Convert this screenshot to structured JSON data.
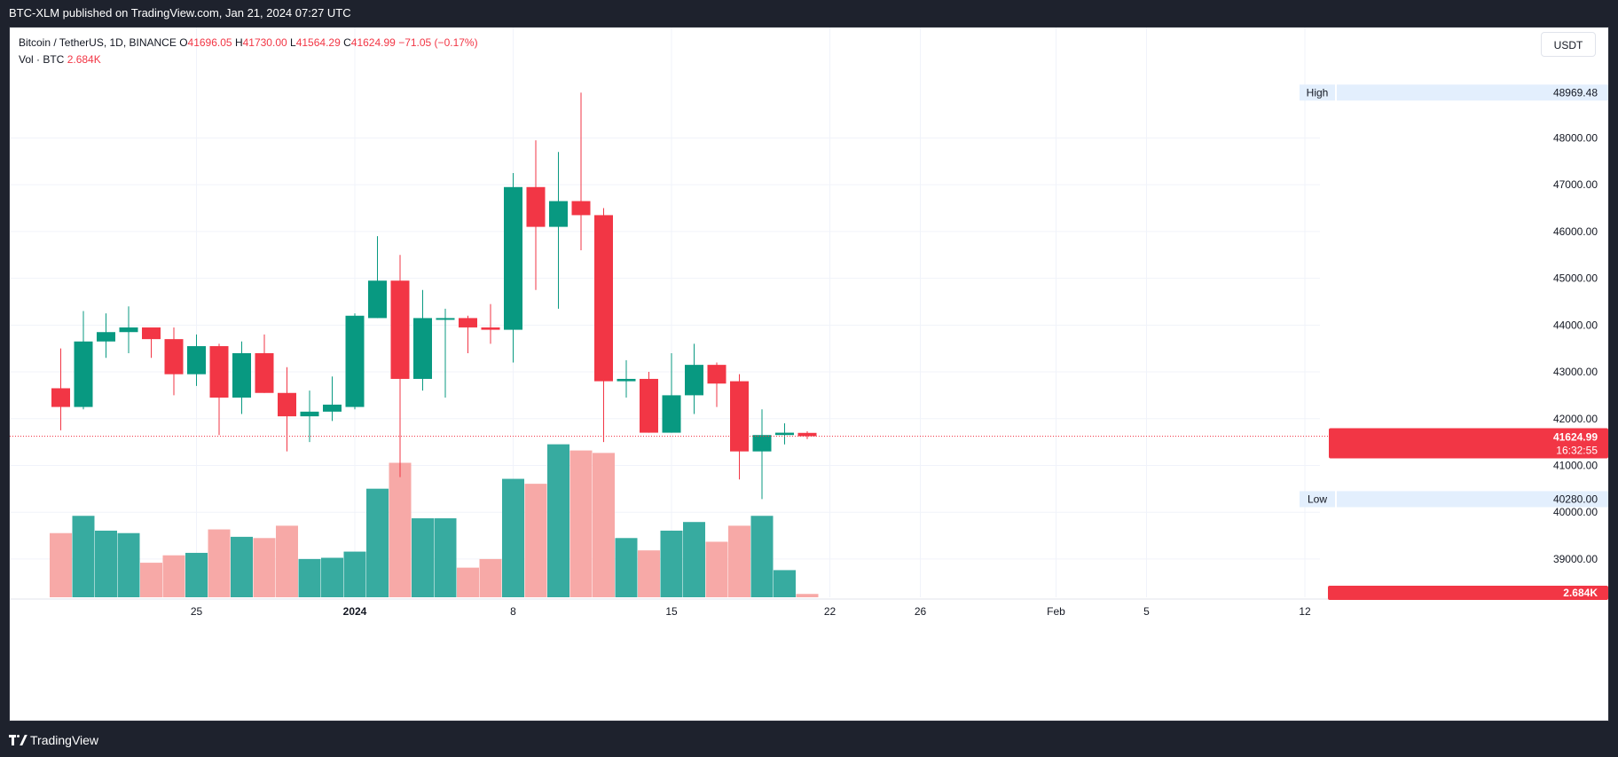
{
  "header": {
    "published": "BTC-XLM published on TradingView.com, Jan 21, 2024 07:27 UTC"
  },
  "footer": {
    "brand": "TradingView",
    "logo_icon": "tradingview-logo-icon"
  },
  "legend": {
    "symbol": "Bitcoin / TetherUS, 1D, BINANCE",
    "open_label": "O",
    "open": "41696.05",
    "high_label": "H",
    "high": "41730.00",
    "low_label": "L",
    "low": "41564.29",
    "close_label": "C",
    "close": "41624.99",
    "change": "−71.05 (−0.17%)",
    "vol_label": "Vol · BTC",
    "vol_value": "2.684K"
  },
  "currency_button": "USDT",
  "colors": {
    "up": "#089981",
    "down": "#f23645",
    "up_vol": "#37aba0",
    "down_vol": "#f7a9a7",
    "grid": "#f0f3fa",
    "text": "#131722"
  },
  "chart_data": {
    "type": "candlestick",
    "title": "Bitcoin / TetherUS, 1D, BINANCE",
    "price_range": [
      38600,
      49450
    ],
    "volume_unit": "K BTC",
    "volume_range": [
      0,
      100
    ],
    "y_ticks": [
      "48000.00",
      "47000.00",
      "46000.00",
      "45000.00",
      "44000.00",
      "43000.00",
      "42000.00",
      "41000.00",
      "40000.00",
      "39000.00"
    ],
    "x_ticks": [
      {
        "label": "25",
        "day": -7,
        "bold": false
      },
      {
        "label": "2024",
        "day": 0,
        "bold": true
      },
      {
        "label": "8",
        "day": 7,
        "bold": false
      },
      {
        "label": "15",
        "day": 14,
        "bold": false
      },
      {
        "label": "22",
        "day": 21,
        "bold": false
      },
      {
        "label": "26",
        "day": 25,
        "bold": false
      },
      {
        "label": "Feb",
        "day": 31,
        "bold": false
      },
      {
        "label": "5",
        "day": 35,
        "bold": false
      },
      {
        "label": "12",
        "day": 42,
        "bold": false
      }
    ],
    "high_label": {
      "text": "High",
      "value": "48969.48",
      "price": 48969.48
    },
    "low_label": {
      "text": "Low",
      "value": "40280.00",
      "price": 40280.0
    },
    "last_price": {
      "value": "41624.99",
      "price": 41624.99,
      "countdown": "16:32:55"
    },
    "volume_label": "2.684K",
    "candles": [
      {
        "day": -13,
        "o": 42650,
        "h": 43500,
        "l": 41750,
        "c": 42250,
        "v": 52
      },
      {
        "day": -12,
        "o": 42250,
        "h": 44300,
        "l": 42200,
        "c": 43650,
        "v": 66
      },
      {
        "day": -11,
        "o": 43650,
        "h": 44250,
        "l": 43300,
        "c": 43850,
        "v": 54
      },
      {
        "day": -10,
        "o": 43850,
        "h": 44400,
        "l": 43400,
        "c": 43950,
        "v": 52
      },
      {
        "day": -9,
        "o": 43950,
        "h": 43950,
        "l": 43300,
        "c": 43700,
        "v": 28
      },
      {
        "day": -8,
        "o": 43700,
        "h": 43950,
        "l": 42500,
        "c": 42950,
        "v": 34
      },
      {
        "day": -7,
        "o": 42950,
        "h": 43800,
        "l": 42700,
        "c": 43550,
        "v": 36
      },
      {
        "day": -6,
        "o": 43550,
        "h": 43600,
        "l": 41650,
        "c": 42450,
        "v": 55
      },
      {
        "day": -5,
        "o": 42450,
        "h": 43650,
        "l": 42100,
        "c": 43400,
        "v": 49
      },
      {
        "day": -4,
        "o": 43400,
        "h": 43800,
        "l": 42550,
        "c": 42550,
        "v": 48
      },
      {
        "day": -3,
        "o": 42550,
        "h": 43100,
        "l": 41300,
        "c": 42050,
        "v": 58
      },
      {
        "day": -2,
        "o": 42050,
        "h": 42600,
        "l": 41500,
        "c": 42150,
        "v": 31
      },
      {
        "day": -1,
        "o": 42150,
        "h": 42900,
        "l": 41950,
        "c": 42300,
        "v": 32
      },
      {
        "day": 0,
        "o": 42250,
        "h": 44250,
        "l": 42200,
        "c": 44200,
        "v": 37
      },
      {
        "day": 1,
        "o": 44150,
        "h": 45900,
        "l": 44150,
        "c": 44950,
        "v": 88
      },
      {
        "day": 2,
        "o": 44950,
        "h": 45500,
        "l": 40750,
        "c": 42850,
        "v": 109
      },
      {
        "day": 3,
        "o": 42850,
        "h": 44750,
        "l": 42600,
        "c": 44150,
        "v": 64
      },
      {
        "day": 4,
        "o": 44150,
        "h": 44350,
        "l": 42450,
        "c": 44150,
        "v": 64
      },
      {
        "day": 5,
        "o": 44150,
        "h": 44200,
        "l": 43400,
        "c": 43950,
        "v": 24
      },
      {
        "day": 6,
        "o": 43950,
        "h": 44450,
        "l": 43600,
        "c": 43900,
        "v": 31
      },
      {
        "day": 7,
        "o": 43900,
        "h": 47250,
        "l": 43200,
        "c": 46950,
        "v": 96
      },
      {
        "day": 8,
        "o": 46950,
        "h": 47950,
        "l": 44750,
        "c": 46100,
        "v": 92
      },
      {
        "day": 9,
        "o": 46100,
        "h": 47700,
        "l": 44350,
        "c": 46650,
        "v": 124
      },
      {
        "day": 10,
        "o": 46650,
        "h": 48969,
        "l": 45600,
        "c": 46350,
        "v": 119
      },
      {
        "day": 11,
        "o": 46350,
        "h": 46500,
        "l": 41500,
        "c": 42800,
        "v": 117
      },
      {
        "day": 12,
        "o": 42800,
        "h": 43250,
        "l": 42450,
        "c": 42850,
        "v": 48
      },
      {
        "day": 13,
        "o": 42850,
        "h": 43000,
        "l": 41700,
        "c": 41700,
        "v": 38
      },
      {
        "day": 14,
        "o": 41700,
        "h": 43400,
        "l": 41700,
        "c": 42500,
        "v": 54
      },
      {
        "day": 15,
        "o": 42500,
        "h": 43600,
        "l": 42100,
        "c": 43150,
        "v": 61
      },
      {
        "day": 16,
        "o": 43150,
        "h": 43200,
        "l": 42250,
        "c": 42750,
        "v": 45
      },
      {
        "day": 17,
        "o": 42800,
        "h": 42950,
        "l": 40700,
        "c": 41300,
        "v": 58
      },
      {
        "day": 18,
        "o": 41300,
        "h": 42200,
        "l": 40280,
        "c": 41650,
        "v": 66
      },
      {
        "day": 19,
        "o": 41650,
        "h": 41900,
        "l": 41450,
        "c": 41700,
        "v": 22
      },
      {
        "day": 20,
        "o": 41696.05,
        "h": 41730,
        "l": 41564.29,
        "c": 41624.99,
        "v": 2.684
      }
    ]
  }
}
